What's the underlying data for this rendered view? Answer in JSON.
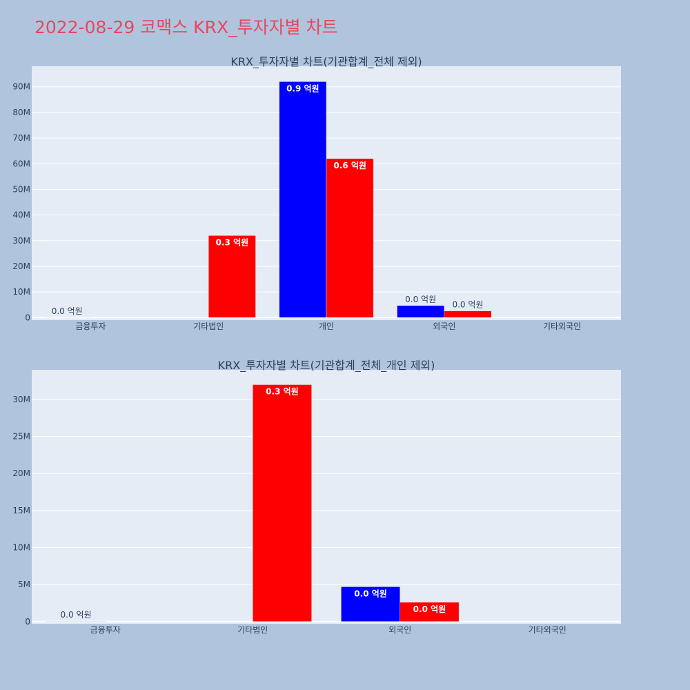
{
  "title": "2022-08-29 코맥스 KRX_투자자별 차트",
  "colors": {
    "page_bg": "#b0c4de",
    "plot_bg": "#e5ecf6",
    "grid": "#ffffff",
    "text": "#2a3f5f",
    "title": "#e8475f",
    "blue": "#0000ff",
    "red": "#ff0000"
  },
  "chart_data": [
    {
      "type": "bar",
      "title": "KRX_투자자별 차트(기관합계_전체 제외)",
      "categories": [
        "금융투자",
        "기타법인",
        "개인",
        "외국인",
        "기타외국인"
      ],
      "ylim": [
        -1000000,
        98000000
      ],
      "yticks": [
        0,
        10000000,
        20000000,
        30000000,
        40000000,
        50000000,
        60000000,
        70000000,
        80000000,
        90000000
      ],
      "ytick_labels": [
        "0",
        "10M",
        "20M",
        "30M",
        "40M",
        "50M",
        "60M",
        "70M",
        "80M",
        "90M"
      ],
      "grid": true,
      "series": [
        {
          "color": "#0000ff",
          "values": [
            50000,
            0,
            92000000,
            4700000,
            0
          ],
          "labels": [
            "0.0 억원",
            "",
            "0.9 억원",
            "0.0 억원",
            ""
          ]
        },
        {
          "color": "#ff0000",
          "values": [
            0,
            32000000,
            62000000,
            2600000,
            0
          ],
          "labels": [
            "",
            "0.3 억원",
            "0.6 억원",
            "0.0 억원",
            ""
          ]
        }
      ]
    },
    {
      "type": "bar",
      "title": "KRX_투자자별 차트(기관합계_전체_개인 제외)",
      "categories": [
        "금융투자",
        "기타법인",
        "외국인",
        "기타외국인"
      ],
      "ylim": [
        -300000,
        34000000
      ],
      "yticks": [
        0,
        5000000,
        10000000,
        15000000,
        20000000,
        25000000,
        30000000
      ],
      "ytick_labels": [
        "0",
        "5M",
        "10M",
        "15M",
        "20M",
        "25M",
        "30M"
      ],
      "grid": true,
      "series": [
        {
          "color": "#0000ff",
          "values": [
            50000,
            0,
            4700000,
            0
          ],
          "labels": [
            "0.0 억원",
            "",
            "0.0 억원",
            ""
          ]
        },
        {
          "color": "#ff0000",
          "values": [
            0,
            32000000,
            2600000,
            0
          ],
          "labels": [
            "",
            "0.3 억원",
            "0.0 억원",
            ""
          ]
        }
      ]
    }
  ]
}
